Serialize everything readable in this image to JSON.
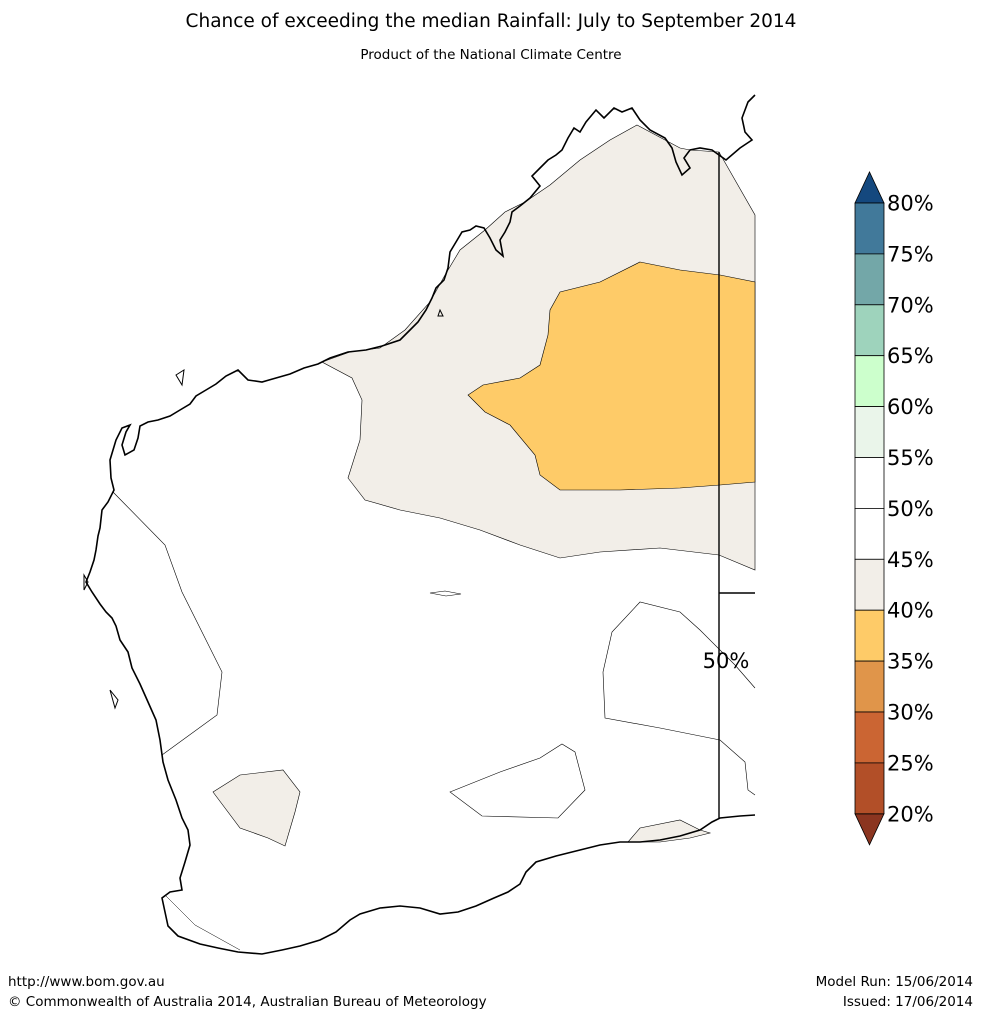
{
  "title": "Chance of exceeding the median Rainfall: July to September 2014",
  "subtitle": "Product of the National Climate Centre",
  "map_label": "50%",
  "colorbar": {
    "labels": [
      "80%",
      "75%",
      "70%",
      "65%",
      "60%",
      "55%",
      "50%",
      "45%",
      "40%",
      "35%",
      "30%",
      "25%",
      "20%"
    ],
    "colors_top_to_bottom": [
      "#41799a",
      "#73a7a8",
      "#9ed3bc",
      "#ccffcc",
      "#eaf5ea",
      "#ffffff",
      "#ffffff",
      "#f2eee8",
      "#fecb68",
      "#e0954a",
      "#cb6533",
      "#b24f28"
    ],
    "over_color": "#14487e",
    "under_color": "#8b3520"
  },
  "region_colors": {
    "prob_40_45": "#f2eee8",
    "prob_35_40": "#fecb68"
  },
  "footer": {
    "url": "http://www.bom.gov.au",
    "copyright": "©  Commonwealth of Australia 2014, Australian Bureau of Meteorology",
    "model_run": "Model Run: 15/06/2014",
    "issued": "Issued: 17/06/2014"
  }
}
